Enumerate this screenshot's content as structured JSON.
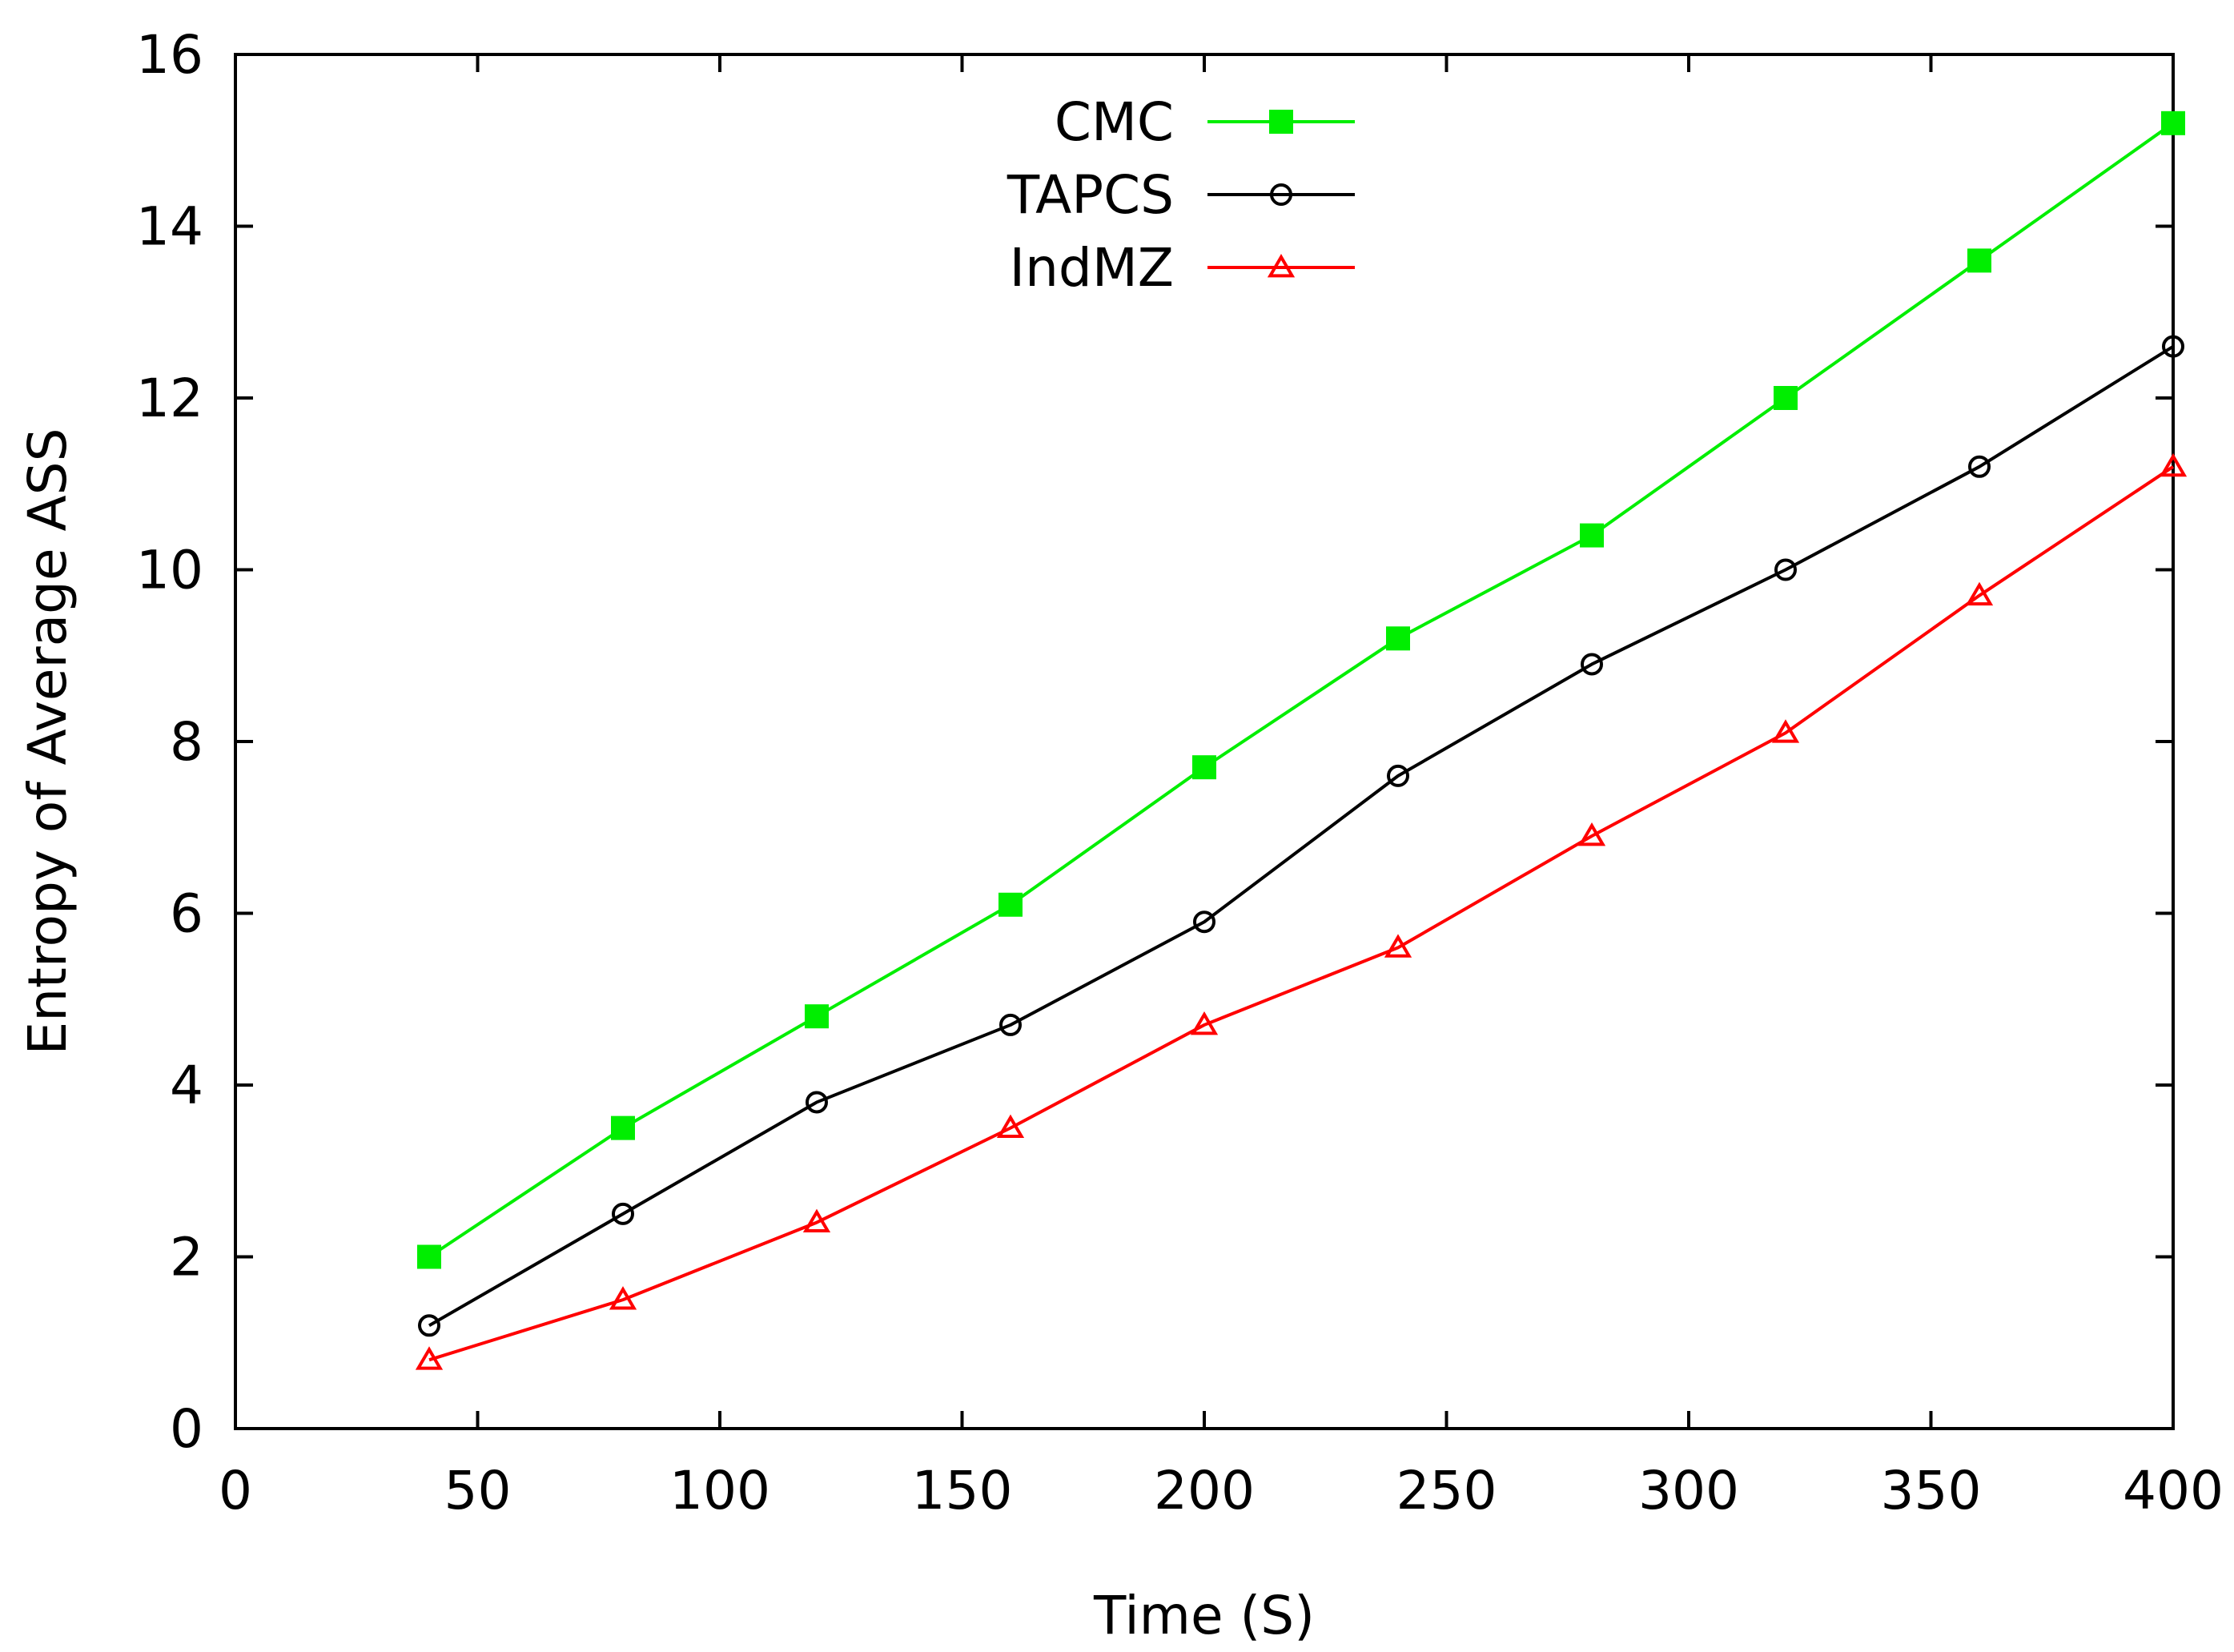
{
  "chart_data": {
    "type": "line",
    "title": "",
    "xlabel": "Time (S)",
    "ylabel": "Entropy of Average ASS",
    "xlim": [
      0,
      400
    ],
    "ylim": [
      0,
      16
    ],
    "x_ticks": [
      0,
      50,
      100,
      150,
      200,
      250,
      300,
      350,
      400
    ],
    "y_ticks": [
      0,
      2,
      4,
      6,
      8,
      10,
      12,
      14,
      16
    ],
    "grid": false,
    "legend_position": "top-center",
    "x": [
      40,
      80,
      120,
      160,
      200,
      240,
      280,
      320,
      360,
      400
    ],
    "series": [
      {
        "name": "CMC",
        "color": "#00ee00",
        "marker": "filled-square",
        "values": [
          2.0,
          3.5,
          4.8,
          6.1,
          7.7,
          9.2,
          10.4,
          12.0,
          13.6,
          15.2
        ]
      },
      {
        "name": "TAPCS",
        "color": "#000000",
        "marker": "open-circle",
        "values": [
          1.2,
          2.5,
          3.8,
          4.7,
          5.9,
          7.6,
          8.9,
          10.0,
          11.2,
          12.6
        ]
      },
      {
        "name": "IndMZ",
        "color": "#ff0000",
        "marker": "open-triangle",
        "values": [
          0.8,
          1.5,
          2.4,
          3.5,
          4.7,
          5.6,
          6.9,
          8.1,
          9.7,
          11.2
        ]
      }
    ]
  }
}
